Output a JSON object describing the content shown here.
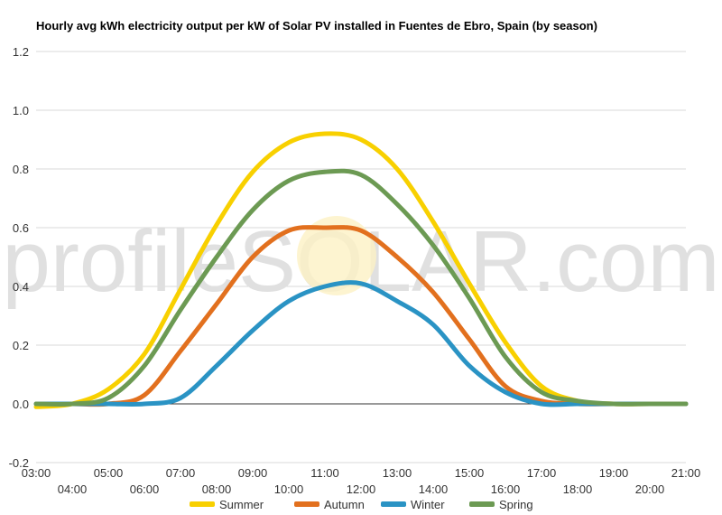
{
  "chart_data": {
    "type": "line",
    "title": "Hourly avg kWh electricity output per kW of Solar PV installed in Fuentes de Ebro, Spain (by season)",
    "xlabel": "",
    "ylabel": "",
    "x": [
      "03:00",
      "04:00",
      "05:00",
      "06:00",
      "07:00",
      "08:00",
      "09:00",
      "10:00",
      "11:00",
      "12:00",
      "13:00",
      "14:00",
      "15:00",
      "16:00",
      "17:00",
      "18:00",
      "19:00",
      "20:00",
      "21:00"
    ],
    "ylim": [
      -0.2,
      1.2
    ],
    "yticks": [
      "-0.2",
      "0.0",
      "0.2",
      "0.4",
      "0.6",
      "0.8",
      "1.0",
      "1.2"
    ],
    "grid": true,
    "legend_position": "bottom",
    "series": [
      {
        "name": "Summer",
        "color": "#f8d000",
        "values": [
          -0.01,
          0.0,
          0.05,
          0.17,
          0.39,
          0.61,
          0.79,
          0.89,
          0.92,
          0.9,
          0.8,
          0.62,
          0.41,
          0.21,
          0.06,
          0.01,
          0.0,
          0.0,
          0.0
        ]
      },
      {
        "name": "Autumn",
        "color": "#e2701e",
        "values": [
          0.0,
          0.0,
          0.0,
          0.03,
          0.18,
          0.34,
          0.5,
          0.59,
          0.6,
          0.59,
          0.5,
          0.38,
          0.22,
          0.06,
          0.01,
          0.0,
          0.0,
          0.0,
          0.0
        ]
      },
      {
        "name": "Winter",
        "color": "#2a93c4",
        "values": [
          0.0,
          0.0,
          0.0,
          0.0,
          0.02,
          0.13,
          0.25,
          0.35,
          0.4,
          0.41,
          0.35,
          0.27,
          0.13,
          0.04,
          0.0,
          0.0,
          0.0,
          0.0,
          0.0
        ]
      },
      {
        "name": "Spring",
        "color": "#6c9a53",
        "values": [
          0.0,
          0.0,
          0.02,
          0.13,
          0.32,
          0.5,
          0.66,
          0.76,
          0.79,
          0.78,
          0.68,
          0.54,
          0.36,
          0.16,
          0.04,
          0.01,
          0.0,
          0.0,
          0.0
        ]
      }
    ]
  },
  "watermark": {
    "text": "profileSOLAR.com"
  }
}
